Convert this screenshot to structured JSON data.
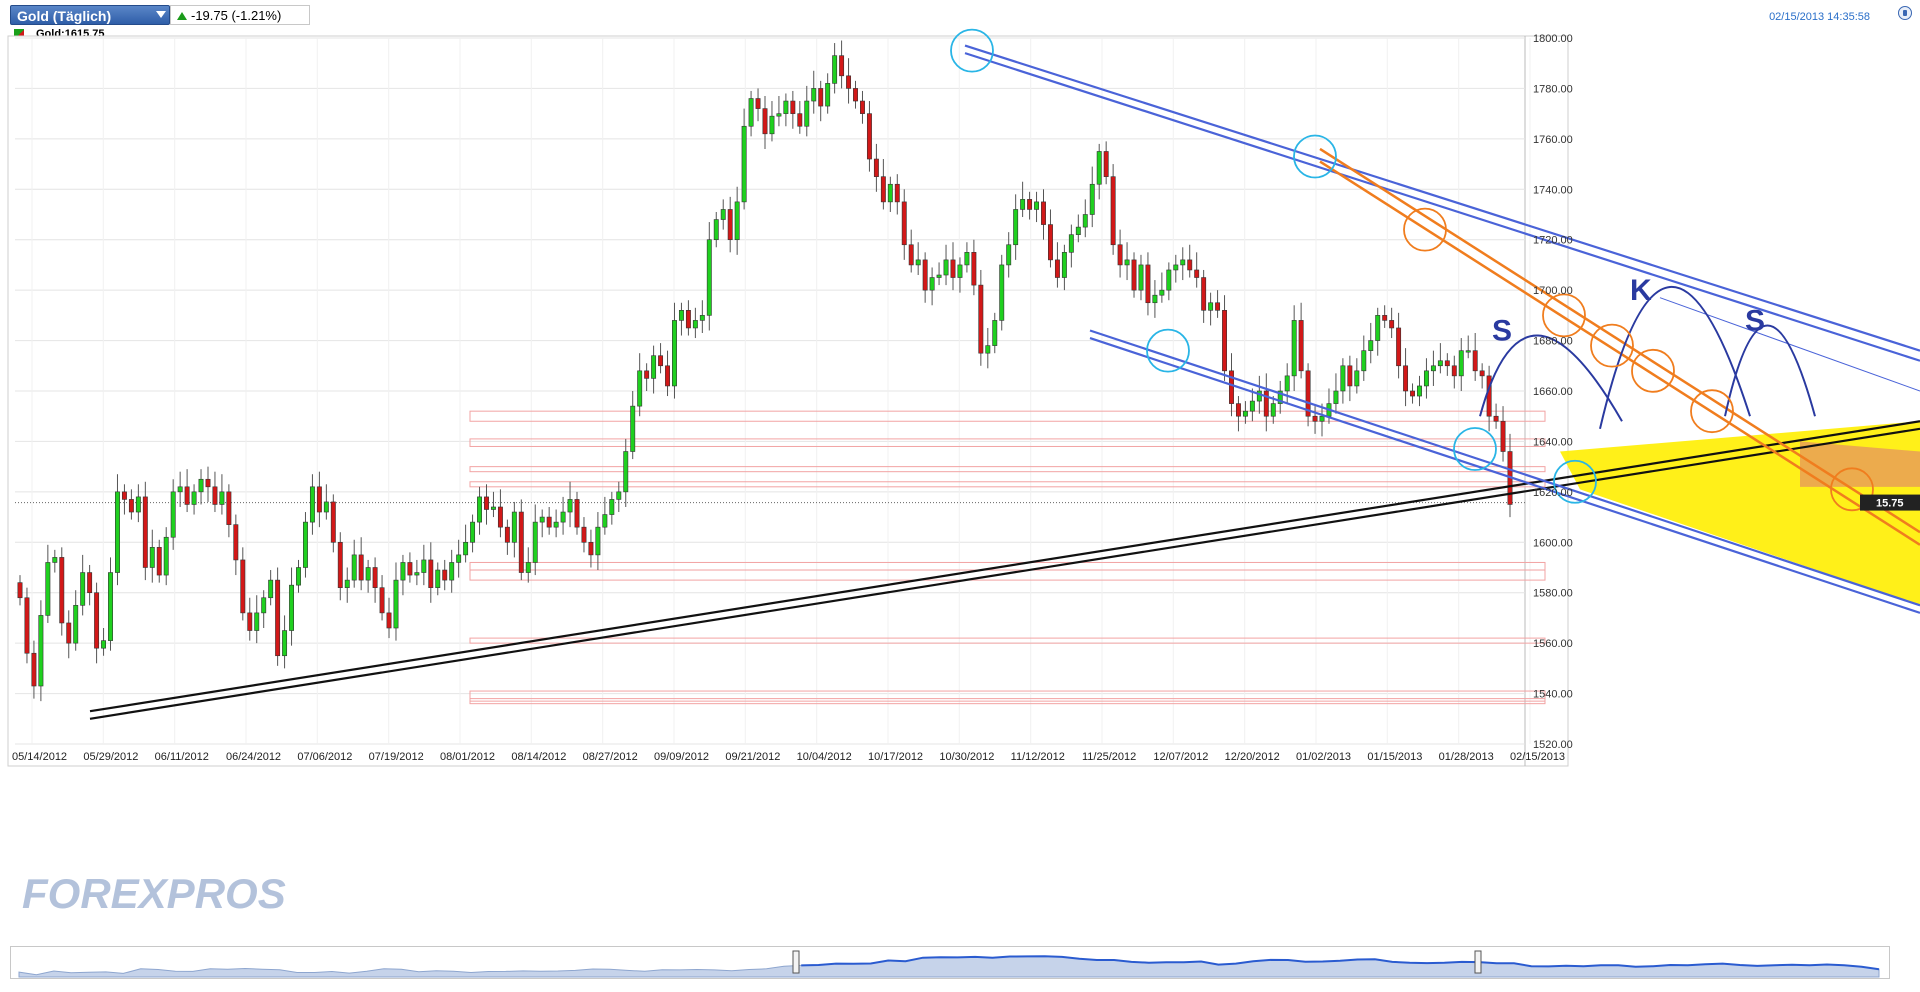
{
  "header": {
    "symbol": "Gold (Täglich)",
    "change": "-19.75 (-1.21%)",
    "datetime": "02/15/2013 14:35:58",
    "legend": "Gold:1615.75"
  },
  "watermark": "FOREXPROS",
  "colors": {
    "up": "#1fd01f",
    "down": "#d21818",
    "channel": "#4a63d8",
    "orange": "#f07d1e",
    "trend": "#111111",
    "pattern": "#2a3aa0",
    "circle_cyan": "#29b5e6",
    "highlight_yellow": "#ffee00"
  },
  "chart_data": {
    "type": "candlestick",
    "title": "Gold (Täglich)",
    "last_price": "1615.75",
    "ylim": [
      1520,
      1800
    ],
    "y_ticks": [
      "1800.00",
      "1780.00",
      "1760.00",
      "1740.00",
      "1720.00",
      "1700.00",
      "1680.00",
      "1660.00",
      "1640.00",
      "1620.00",
      "1600.00",
      "1580.00",
      "1560.00",
      "1540.00",
      "1520.00"
    ],
    "x_labels": [
      "05/14/2012",
      "05/29/2012",
      "06/11/2012",
      "06/24/2012",
      "07/06/2012",
      "07/19/2012",
      "08/01/2012",
      "08/14/2012",
      "08/27/2012",
      "09/09/2012",
      "09/21/2012",
      "10/04/2012",
      "10/17/2012",
      "10/30/2012",
      "11/12/2012",
      "11/25/2012",
      "12/07/2012",
      "12/20/2012",
      "01/02/2013",
      "01/15/2013",
      "01/28/2013",
      "02/15/2013"
    ],
    "closes": [
      1578,
      1556,
      1543,
      1571,
      1592,
      1594,
      1568,
      1560,
      1575,
      1588,
      1580,
      1558,
      1561,
      1588,
      1620,
      1617,
      1612,
      1618,
      1590,
      1598,
      1587,
      1602,
      1620,
      1622,
      1615,
      1620,
      1625,
      1622,
      1615,
      1620,
      1607,
      1593,
      1572,
      1565,
      1572,
      1578,
      1585,
      1555,
      1565,
      1583,
      1590,
      1608,
      1622,
      1612,
      1616,
      1600,
      1582,
      1585,
      1595,
      1585,
      1590,
      1582,
      1572,
      1566,
      1585,
      1592,
      1587,
      1588,
      1593,
      1582,
      1589,
      1585,
      1592,
      1595,
      1600,
      1608,
      1618,
      1613,
      1614,
      1606,
      1600,
      1612,
      1588,
      1592,
      1608,
      1610,
      1606,
      1608,
      1612,
      1617,
      1606,
      1600,
      1595,
      1606,
      1611,
      1617,
      1620,
      1636,
      1654,
      1668,
      1665,
      1674,
      1670,
      1662,
      1688,
      1692,
      1685,
      1688,
      1690,
      1720,
      1728,
      1732,
      1720,
      1735,
      1765,
      1776,
      1772,
      1762,
      1769,
      1770,
      1775,
      1770,
      1765,
      1775,
      1780,
      1773,
      1782,
      1793,
      1785,
      1780,
      1775,
      1770,
      1752,
      1745,
      1735,
      1742,
      1735,
      1718,
      1710,
      1712,
      1700,
      1705,
      1706,
      1712,
      1705,
      1710,
      1715,
      1702,
      1675,
      1678,
      1688,
      1710,
      1718,
      1732,
      1736,
      1732,
      1735,
      1726,
      1712,
      1705,
      1715,
      1722,
      1725,
      1730,
      1742,
      1755,
      1745,
      1718,
      1710,
      1712,
      1700,
      1710,
      1695,
      1698,
      1700,
      1708,
      1710,
      1712,
      1708,
      1705,
      1692,
      1695,
      1692,
      1668,
      1655,
      1650,
      1652,
      1656,
      1660,
      1650,
      1655,
      1660,
      1666,
      1688,
      1668,
      1650,
      1648,
      1650,
      1655,
      1660,
      1670,
      1662,
      1668,
      1676,
      1680,
      1690,
      1688,
      1685,
      1670,
      1660,
      1658,
      1662,
      1668,
      1670,
      1672,
      1670,
      1666,
      1676,
      1676,
      1668,
      1666,
      1650,
      1648,
      1636,
      1615
    ]
  },
  "navigator": {
    "label": ""
  }
}
